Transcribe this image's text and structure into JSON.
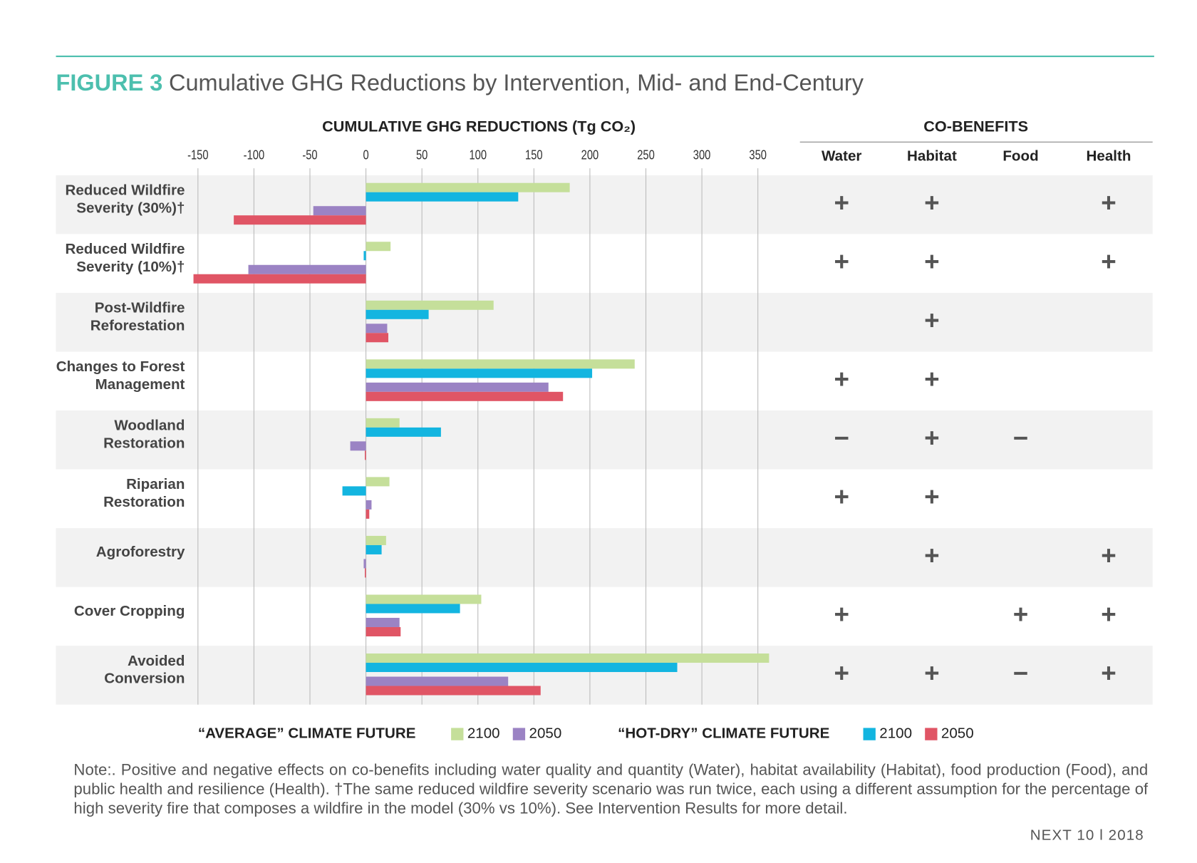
{
  "chart_data": {
    "type": "bar",
    "orientation": "horizontal",
    "title_prefix": "FIGURE 3",
    "title": "Cumulative GHG Reductions by Intervention, Mid- and End-Century",
    "xlabel": "CUMULATIVE GHG REDUCTIONS (Tg CO₂)",
    "categories": [
      [
        "Reduced Wildfire",
        "Severity (30%)†"
      ],
      [
        "Reduced Wildfire",
        "Severity (10%)†"
      ],
      [
        "Post-Wildfire",
        "Reforestation"
      ],
      [
        "Changes to Forest",
        "Management"
      ],
      [
        "Woodland",
        "Restoration"
      ],
      [
        "Riparian",
        "Restoration"
      ],
      [
        "Agroforestry"
      ],
      [
        "Cover Cropping"
      ],
      [
        "Avoided",
        "Conversion"
      ]
    ],
    "legend_groups": [
      "“AVERAGE” CLIMATE FUTURE",
      "“HOT-DRY” CLIMATE FUTURE"
    ],
    "series": [
      {
        "name": "2100",
        "group": 0,
        "color": "#c5df9a",
        "values": [
          182,
          22,
          114,
          240,
          30,
          21,
          18,
          103,
          360
        ]
      },
      {
        "name": "2100",
        "group": 1,
        "color": "#13b5e0",
        "values": [
          136,
          -2,
          56,
          202,
          67,
          -21,
          14,
          84,
          278
        ]
      },
      {
        "name": "2050",
        "group": 0,
        "color": "#9b83c4",
        "values": [
          -47,
          -105,
          19,
          163,
          -14,
          5,
          -2,
          30,
          127
        ]
      },
      {
        "name": "2050",
        "group": 1,
        "color": "#e05565",
        "values": [
          -118,
          -154,
          20,
          176,
          -1,
          3,
          -1,
          31,
          156
        ]
      }
    ],
    "xlim": [
      -150,
      365
    ],
    "xticks": [
      -150,
      -100,
      -50,
      0,
      50,
      100,
      150,
      200,
      250,
      300,
      350
    ],
    "grid": true,
    "cobenefits": {
      "title": "CO-BENEFITS",
      "columns": [
        "Water",
        "Habitat",
        "Food",
        "Health"
      ],
      "rows": [
        [
          "+",
          "+",
          null,
          "+"
        ],
        [
          "+",
          "+",
          null,
          "+"
        ],
        [
          null,
          "+",
          null,
          null
        ],
        [
          "+",
          "+",
          null,
          null
        ],
        [
          "−",
          "+",
          "−",
          null
        ],
        [
          "+",
          "+",
          null,
          null
        ],
        [
          null,
          "+",
          null,
          "+"
        ],
        [
          "+",
          null,
          "+",
          "+"
        ],
        [
          "+",
          "+",
          "−",
          "+"
        ]
      ]
    },
    "note": "Note:. Positive and negative effects on co-benefits including water quality and quantity (Water), habitat availability (Habitat), food production (Food), and public health and resilience (Health). †The same reduced wildfire severity scenario was run twice, each using a different assumption for the percentage of high severity fire that composes a wildfire in the model (30% vs 10%). See Intervention Results for more detail.",
    "footer": "NEXT 10 l 2018"
  }
}
